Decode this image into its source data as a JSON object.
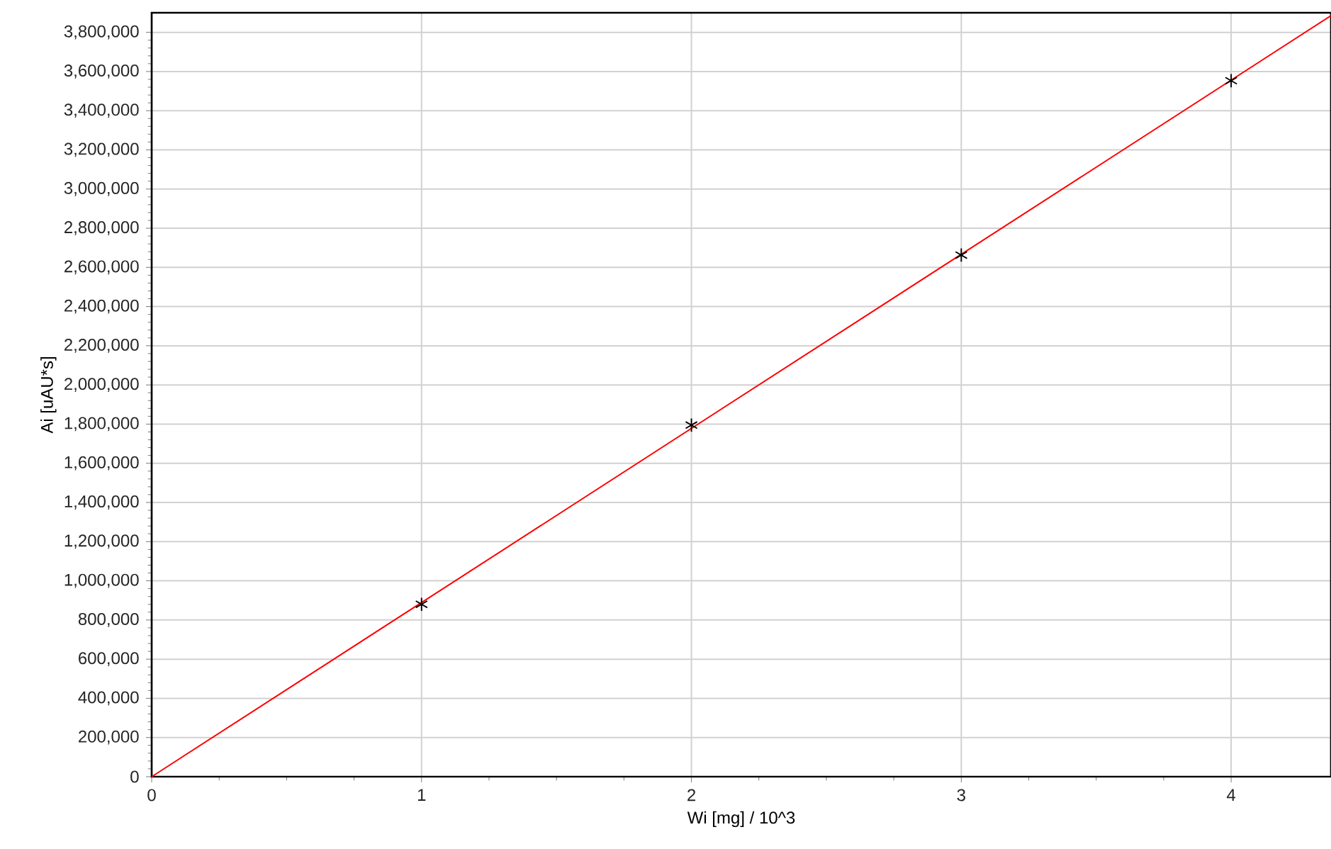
{
  "chart_data": {
    "type": "scatter",
    "xlabel": "Wi [mg] / 10^3",
    "ylabel": "Ai [uAU*s]",
    "xlim": [
      0,
      4.37
    ],
    "ylim": [
      0,
      3900000
    ],
    "xticks": [
      0,
      1,
      2,
      3,
      4
    ],
    "yticks": [
      {
        "value": 0,
        "label": "0"
      },
      {
        "value": 200000,
        "label": "200,000"
      },
      {
        "value": 400000,
        "label": "400,000"
      },
      {
        "value": 600000,
        "label": "600,000"
      },
      {
        "value": 800000,
        "label": "800,000"
      },
      {
        "value": 1000000,
        "label": "1,000,000"
      },
      {
        "value": 1200000,
        "label": "1,200,000"
      },
      {
        "value": 1400000,
        "label": "1,400,000"
      },
      {
        "value": 1600000,
        "label": "1,600,000"
      },
      {
        "value": 1800000,
        "label": "1,800,000"
      },
      {
        "value": 2000000,
        "label": "2,000,000"
      },
      {
        "value": 2200000,
        "label": "2,200,000"
      },
      {
        "value": 2400000,
        "label": "2,400,000"
      },
      {
        "value": 2600000,
        "label": "2,600,000"
      },
      {
        "value": 2800000,
        "label": "2,800,000"
      },
      {
        "value": 3000000,
        "label": "3,000,000"
      },
      {
        "value": 3200000,
        "label": "3,200,000"
      },
      {
        "value": 3400000,
        "label": "3,400,000"
      },
      {
        "value": 3600000,
        "label": "3,600,000"
      },
      {
        "value": 3800000,
        "label": "3,800,000"
      }
    ],
    "grid": true,
    "series": [
      {
        "type": "line",
        "color": "#ff0000",
        "marker": "none",
        "x": [
          0,
          4.37
        ],
        "values": [
          0,
          3885000
        ]
      },
      {
        "color": "#000000",
        "marker": "cross",
        "x": [
          1,
          2,
          3,
          4
        ],
        "values": [
          880000,
          1795000,
          2663000,
          3553000
        ]
      }
    ]
  }
}
